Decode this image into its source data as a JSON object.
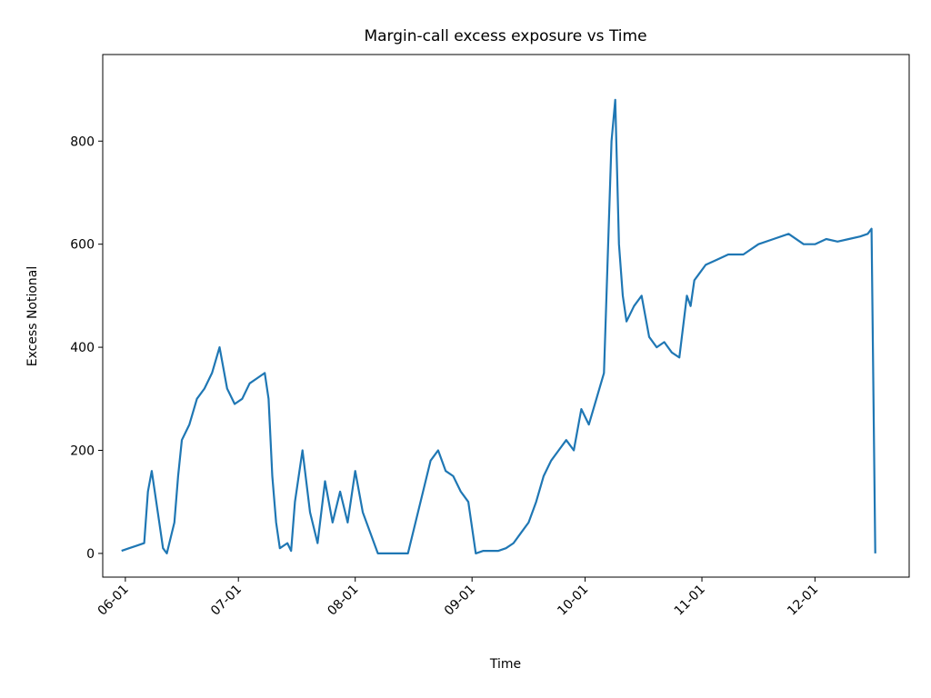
{
  "chart_data": {
    "type": "line",
    "title": "Margin-call excess exposure vs Time",
    "xlabel": "Time",
    "ylabel": "Excess Notional",
    "x_ticks": [
      "06-01",
      "07-01",
      "08-01",
      "09-01",
      "10-01",
      "11-01",
      "12-01"
    ],
    "y_ticks": [
      0,
      200,
      400,
      600,
      800
    ],
    "xlim": [
      "05-26",
      "12-26"
    ],
    "ylim": [
      -46,
      968
    ],
    "grid": false,
    "legend": "none",
    "color": "#1f77b4",
    "series": [
      {
        "x": [
          "05-31",
          "06-02",
          "06-04",
          "06-06",
          "06-07",
          "06-08",
          "06-10",
          "06-11",
          "06-12",
          "06-14",
          "06-15",
          "06-16",
          "06-18",
          "06-20",
          "06-22",
          "06-24",
          "06-26",
          "06-28",
          "06-30",
          "07-02",
          "07-04",
          "07-06",
          "07-08",
          "07-09",
          "07-10",
          "07-11",
          "07-12",
          "07-14",
          "07-15",
          "07-16",
          "07-18",
          "07-20",
          "07-22",
          "07-24",
          "07-26",
          "07-28",
          "07-30",
          "08-01",
          "08-03",
          "08-05",
          "08-07",
          "08-09",
          "08-11",
          "08-13",
          "08-15",
          "08-17",
          "08-19",
          "08-21",
          "08-23",
          "08-25",
          "08-27",
          "08-29",
          "08-31",
          "09-02",
          "09-04",
          "09-06",
          "09-08",
          "09-10",
          "09-12",
          "09-14",
          "09-16",
          "09-18",
          "09-20",
          "09-22",
          "09-24",
          "09-26",
          "09-28",
          "09-30",
          "10-02",
          "10-04",
          "10-06",
          "10-08",
          "10-09",
          "10-10",
          "10-11",
          "10-12",
          "10-14",
          "10-16",
          "10-18",
          "10-20",
          "10-22",
          "10-24",
          "10-26",
          "10-28",
          "10-29",
          "10-30",
          "10-31",
          "11-02",
          "11-05",
          "11-08",
          "11-12",
          "11-16",
          "11-20",
          "11-24",
          "11-28",
          "12-01",
          "12-04",
          "12-07",
          "12-10",
          "12-13",
          "12-15",
          "12-16",
          "12-17"
        ],
        "y": [
          5,
          10,
          15,
          20,
          120,
          160,
          60,
          10,
          0,
          60,
          150,
          220,
          250,
          300,
          320,
          350,
          400,
          320,
          290,
          300,
          330,
          340,
          350,
          300,
          150,
          60,
          10,
          20,
          5,
          100,
          200,
          80,
          20,
          140,
          60,
          120,
          60,
          160,
          80,
          40,
          0,
          0,
          0,
          0,
          0,
          60,
          120,
          180,
          200,
          160,
          150,
          120,
          100,
          0,
          5,
          5,
          5,
          10,
          20,
          40,
          60,
          100,
          150,
          180,
          200,
          220,
          200,
          280,
          250,
          300,
          350,
          800,
          880,
          600,
          500,
          450,
          480,
          500,
          420,
          400,
          410,
          390,
          380,
          500,
          480,
          530,
          540,
          560,
          570,
          580,
          580,
          600,
          610,
          620,
          600,
          600,
          610,
          605,
          610,
          615,
          620,
          630,
          0
        ]
      }
    ]
  }
}
